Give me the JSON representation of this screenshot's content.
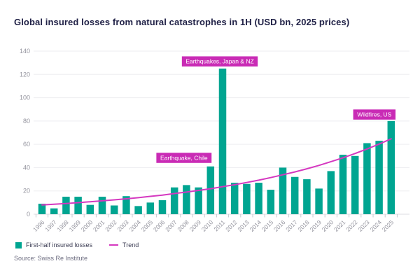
{
  "title": "Global insured losses from natural catastrophes in 1H (USD bn, 2025 prices)",
  "legend": {
    "bars_label": "First-half insured losses",
    "trend_label": "Trend"
  },
  "source": "Source: Swiss Re Institute",
  "colors": {
    "bar": "#00a591",
    "trend": "#d538c0",
    "annotation_bg": "#c92bb5",
    "annotation_text": "#ffffff",
    "title_text": "#212247",
    "axis_text": "#94949e",
    "gridline": "#ededf0",
    "tick": "#c9c9cf"
  },
  "chart_data": {
    "type": "bar",
    "title": "Global insured losses from natural catastrophes in 1H (USD bn, 2025 prices)",
    "categories": [
      1996,
      1997,
      1998,
      1999,
      2000,
      2001,
      2002,
      2003,
      2004,
      2005,
      2006,
      2007,
      2008,
      2009,
      2010,
      2011,
      2012,
      2013,
      2014,
      2015,
      2016,
      2017,
      2018,
      2019,
      2020,
      2021,
      2022,
      2023,
      2024,
      2025
    ],
    "series": [
      {
        "name": "First-half insured losses",
        "type": "bar",
        "values": [
          9,
          5,
          15,
          15,
          8,
          15,
          7.5,
          15.5,
          7,
          10,
          12,
          23,
          25,
          23,
          41,
          125,
          27,
          26,
          27,
          21,
          40,
          32,
          30,
          22,
          37,
          51,
          50,
          61,
          63,
          80
        ]
      },
      {
        "name": "Trend",
        "type": "line",
        "values": [
          8,
          8.6,
          9.2,
          9.9,
          10.7,
          11.5,
          12.3,
          13.2,
          14.2,
          15.3,
          16.4,
          17.7,
          19,
          20.4,
          21.9,
          23.6,
          25.3,
          27.2,
          29.2,
          31.4,
          33.8,
          36.3,
          39,
          41.9,
          45.1,
          48.4,
          52.1,
          56,
          60.2,
          64.7
        ]
      }
    ],
    "xlabel": "",
    "ylabel": "",
    "ylim": [
      0,
      140
    ],
    "ytick_step": 20,
    "grid": true,
    "legend_position": "bottom-left",
    "annotations": [
      {
        "text": "Earthquakes, Japan & NZ",
        "year": 2011,
        "dx": -4,
        "gap": 3
      },
      {
        "text": "Earthquake, Chile",
        "year": 2010,
        "dx": -38,
        "gap": 5
      },
      {
        "text": "Wildfires, US",
        "year": 2025,
        "dx": -24,
        "gap": 2
      }
    ]
  }
}
